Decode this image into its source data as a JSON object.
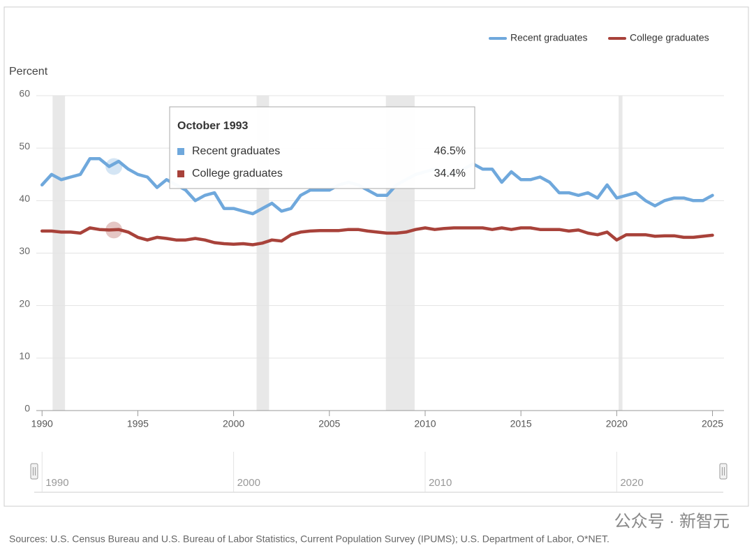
{
  "chart_data": {
    "type": "line",
    "y_label": "Percent",
    "x": [
      1990,
      1990.5,
      1991,
      1991.5,
      1992,
      1992.5,
      1993,
      1993.5,
      1994,
      1994.5,
      1995,
      1995.5,
      1996,
      1996.5,
      1997,
      1997.5,
      1998,
      1998.5,
      1999,
      1999.5,
      2000,
      2000.5,
      2001,
      2001.5,
      2002,
      2002.5,
      2003,
      2003.5,
      2004,
      2004.5,
      2005,
      2005.5,
      2006,
      2006.5,
      2007,
      2007.5,
      2008,
      2008.5,
      2009,
      2009.5,
      2010,
      2010.5,
      2011,
      2011.5,
      2012,
      2012.5,
      2013,
      2013.5,
      2014,
      2014.5,
      2015,
      2015.5,
      2016,
      2016.5,
      2017,
      2017.5,
      2018,
      2018.5,
      2019,
      2019.5,
      2020,
      2020.5,
      2021,
      2021.5,
      2022,
      2022.5,
      2023,
      2023.5,
      2024,
      2024.5,
      2025
    ],
    "series": [
      {
        "name": "Recent graduates",
        "color": "#6fa8dc",
        "values": [
          43,
          45,
          44,
          44.5,
          45,
          48,
          48,
          46.5,
          47.5,
          46,
          45,
          44.5,
          42.5,
          44,
          43,
          42,
          40,
          41,
          41.5,
          38.5,
          38.5,
          38,
          37.5,
          38.5,
          39.5,
          38,
          38.5,
          41,
          42,
          42,
          42,
          43,
          43.5,
          43,
          42,
          41,
          41,
          43,
          44,
          45,
          45.5,
          46,
          45.5,
          45,
          46,
          47,
          46,
          46,
          43.5,
          45.5,
          44,
          44,
          44.5,
          43.5,
          41.5,
          41.5,
          41,
          41.5,
          40.5,
          43,
          40.5,
          41,
          41.5,
          40,
          39,
          40,
          40.5,
          40.5,
          40,
          40,
          41
        ]
      },
      {
        "name": "College graduates",
        "color": "#a8423a",
        "values": [
          34.2,
          34.2,
          34,
          34,
          33.8,
          34.8,
          34.5,
          34.4,
          34.5,
          34,
          33,
          32.5,
          33,
          32.8,
          32.5,
          32.5,
          32.8,
          32.5,
          32,
          31.8,
          31.7,
          31.8,
          31.6,
          31.9,
          32.5,
          32.3,
          33.5,
          34,
          34.2,
          34.3,
          34.3,
          34.3,
          34.5,
          34.5,
          34.2,
          34,
          33.8,
          33.8,
          34,
          34.5,
          34.8,
          34.5,
          34.7,
          34.8,
          34.8,
          34.8,
          34.8,
          34.5,
          34.8,
          34.5,
          34.8,
          34.8,
          34.5,
          34.5,
          34.5,
          34.2,
          34.4,
          33.8,
          33.5,
          34,
          32.5,
          33.5,
          33.5,
          33.5,
          33.2,
          33.3,
          33.3,
          33,
          33,
          33.2,
          33.4
        ]
      }
    ],
    "recessions": [
      [
        1990.55,
        1991.2
      ],
      [
        2001.2,
        2001.85
      ],
      [
        2007.95,
        2009.45
      ],
      [
        2020.1,
        2020.3
      ]
    ],
    "xlim": [
      1989.7,
      2025.6
    ],
    "ylim": [
      0,
      60
    ],
    "xticks": [
      1990,
      1995,
      2000,
      2005,
      2010,
      2015,
      2020,
      2025
    ],
    "yticks": [
      0,
      10,
      20,
      30,
      40,
      50,
      60
    ],
    "grid": true,
    "legend": "top-right",
    "tooltip": {
      "title": "October 1993",
      "x": 1993.75,
      "values": [
        46.5,
        34.4
      ],
      "value_labels": [
        "46.5%",
        "34.4%"
      ]
    },
    "navigator_ticks": [
      1990,
      2000,
      2010,
      2020
    ],
    "source": "Sources: U.S. Census Bureau and U.S. Bureau of Labor Statistics, Current Population Survey (IPUMS); U.S. Department of Labor, O*NET.",
    "watermark": "公众号 · 新智元"
  }
}
